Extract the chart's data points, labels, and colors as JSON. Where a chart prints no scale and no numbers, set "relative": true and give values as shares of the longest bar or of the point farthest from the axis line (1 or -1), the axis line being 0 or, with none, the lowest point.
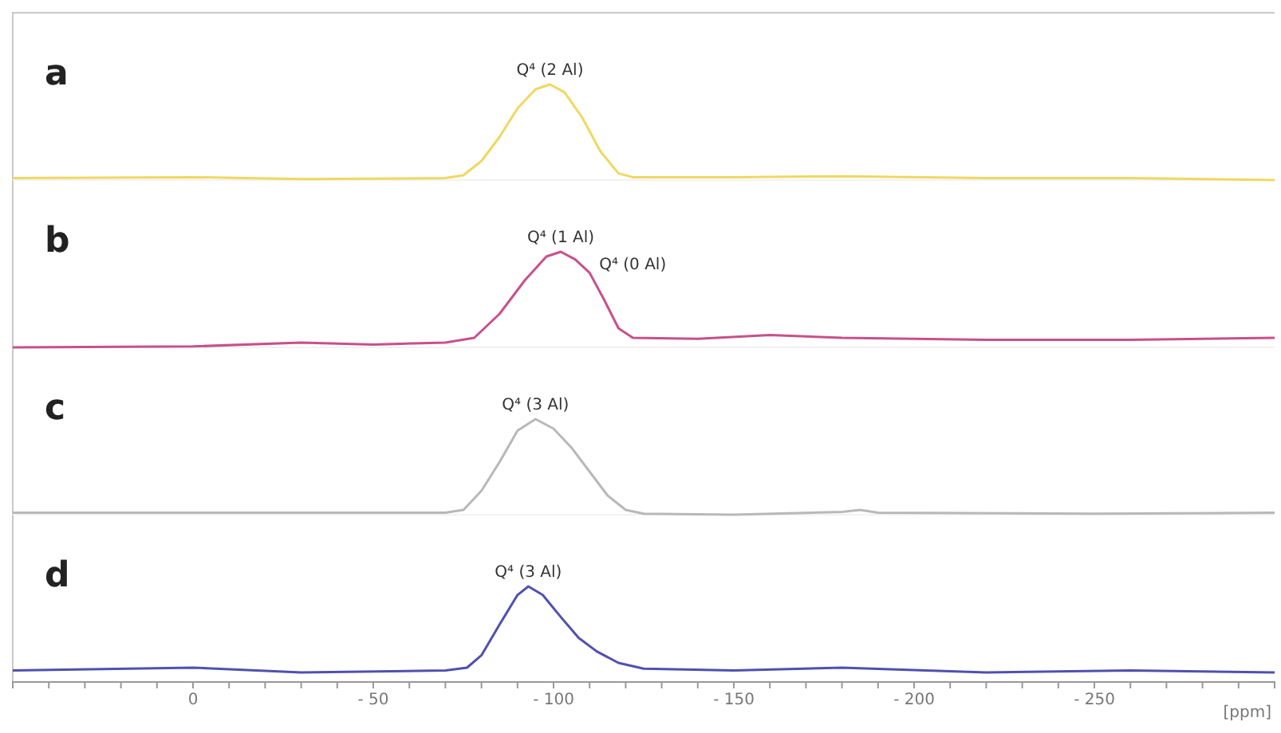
{
  "chart_data": [
    {
      "type": "line",
      "title": "a",
      "relative": true,
      "xlim": [
        50,
        -300
      ],
      "tick_labels": false,
      "x": [
        50,
        0,
        -30,
        -70,
        -75,
        -80,
        -85,
        -90,
        -95,
        -99,
        -103,
        -108,
        -113,
        -118,
        -122,
        -150,
        -180,
        -220,
        -260,
        -300
      ],
      "series": [
        {
          "color": "#f0d860",
          "values": [
            0.02,
            0.03,
            0.01,
            0.02,
            0.05,
            0.2,
            0.45,
            0.75,
            0.95,
            1,
            0.92,
            0.65,
            0.3,
            0.07,
            0.03,
            0.03,
            0.04,
            0.02,
            0.02,
            0
          ]
        }
      ],
      "annotations": [
        {
          "text": "Q⁴ (2 Al)",
          "x": -99,
          "y": 1
        }
      ]
    },
    {
      "type": "line",
      "title": "b",
      "relative": true,
      "xlim": [
        50,
        -300
      ],
      "tick_labels": false,
      "x": [
        50,
        0,
        -30,
        -50,
        -70,
        -78,
        -85,
        -92,
        -98,
        -102,
        -106,
        -110,
        -114,
        -118,
        -122,
        -140,
        -160,
        -180,
        -220,
        -260,
        -300
      ],
      "series": [
        {
          "color": "#c8508c",
          "values": [
            0,
            0.01,
            0.05,
            0.03,
            0.05,
            0.1,
            0.35,
            0.7,
            0.95,
            1,
            0.92,
            0.78,
            0.5,
            0.2,
            0.1,
            0.09,
            0.13,
            0.1,
            0.08,
            0.08,
            0.1
          ]
        }
      ],
      "annotations": [
        {
          "text": "Q⁴ (1 Al)",
          "x": -102,
          "y": 1
        },
        {
          "text": "Q⁴ (0 Al)",
          "x": -110,
          "y": 0.78
        }
      ]
    },
    {
      "type": "line",
      "title": "c",
      "relative": true,
      "xlim": [
        50,
        -300
      ],
      "tick_labels": false,
      "x": [
        50,
        0,
        -70,
        -75,
        -80,
        -85,
        -90,
        -95,
        -100,
        -105,
        -110,
        -115,
        -120,
        -125,
        -150,
        -180,
        -185,
        -190,
        -250,
        -300
      ],
      "series": [
        {
          "color": "#b8b8b8",
          "values": [
            0.02,
            0.02,
            0.02,
            0.05,
            0.25,
            0.55,
            0.88,
            1,
            0.9,
            0.7,
            0.45,
            0.2,
            0.05,
            0.01,
            0,
            0.03,
            0.05,
            0.02,
            0.01,
            0.02
          ]
        }
      ],
      "annotations": [
        {
          "text": "Q⁴ (3 Al)",
          "x": -95,
          "y": 1
        }
      ]
    },
    {
      "type": "line",
      "title": "d",
      "relative": true,
      "xlim": [
        50,
        -300
      ],
      "tick_labels": "x",
      "xlabel": "[ppm]",
      "xticks": [
        {
          "value": 40,
          "label": null
        },
        {
          "value": 30,
          "label": null
        },
        {
          "value": 20,
          "label": null
        },
        {
          "value": 10,
          "label": null
        },
        0,
        {
          "value": -10,
          "label": null
        },
        {
          "value": -20,
          "label": null
        },
        {
          "value": -30,
          "label": null
        },
        {
          "value": -40,
          "label": null
        },
        {
          "value": -50,
          "label": "- 50"
        },
        {
          "value": -60,
          "label": null
        },
        {
          "value": -70,
          "label": null
        },
        {
          "value": -80,
          "label": null
        },
        {
          "value": -90,
          "label": null
        },
        {
          "value": -100,
          "label": "- 100"
        },
        {
          "value": -110,
          "label": null
        },
        {
          "value": -120,
          "label": null
        },
        {
          "value": -130,
          "label": null
        },
        {
          "value": -140,
          "label": null
        },
        {
          "value": -150,
          "label": "- 150"
        },
        {
          "value": -160,
          "label": null
        },
        {
          "value": -170,
          "label": null
        },
        {
          "value": -180,
          "label": null
        },
        {
          "value": -190,
          "label": null
        },
        {
          "value": -200,
          "label": "- 200"
        },
        {
          "value": -210,
          "label": null
        },
        {
          "value": -220,
          "label": null
        },
        {
          "value": -230,
          "label": null
        },
        {
          "value": -240,
          "label": null
        },
        {
          "value": -250,
          "label": "- 250"
        },
        {
          "value": -260,
          "label": null
        },
        {
          "value": -270,
          "label": null
        },
        {
          "value": -280,
          "label": null
        },
        {
          "value": -290,
          "label": null
        }
      ],
      "x": [
        50,
        0,
        -30,
        -70,
        -76,
        -80,
        -85,
        -90,
        -93,
        -97,
        -102,
        -107,
        -112,
        -118,
        -125,
        -150,
        -180,
        -220,
        -260,
        -300
      ],
      "series": [
        {
          "color": "#5050b0",
          "values": [
            0.12,
            0.15,
            0.1,
            0.12,
            0.15,
            0.28,
            0.6,
            0.91,
            1,
            0.91,
            0.68,
            0.46,
            0.32,
            0.2,
            0.14,
            0.12,
            0.15,
            0.1,
            0.12,
            0.1
          ]
        }
      ],
      "annotations": [
        {
          "text": "Q⁴ (3 Al)",
          "x": -93,
          "y": 1
        }
      ]
    }
  ]
}
